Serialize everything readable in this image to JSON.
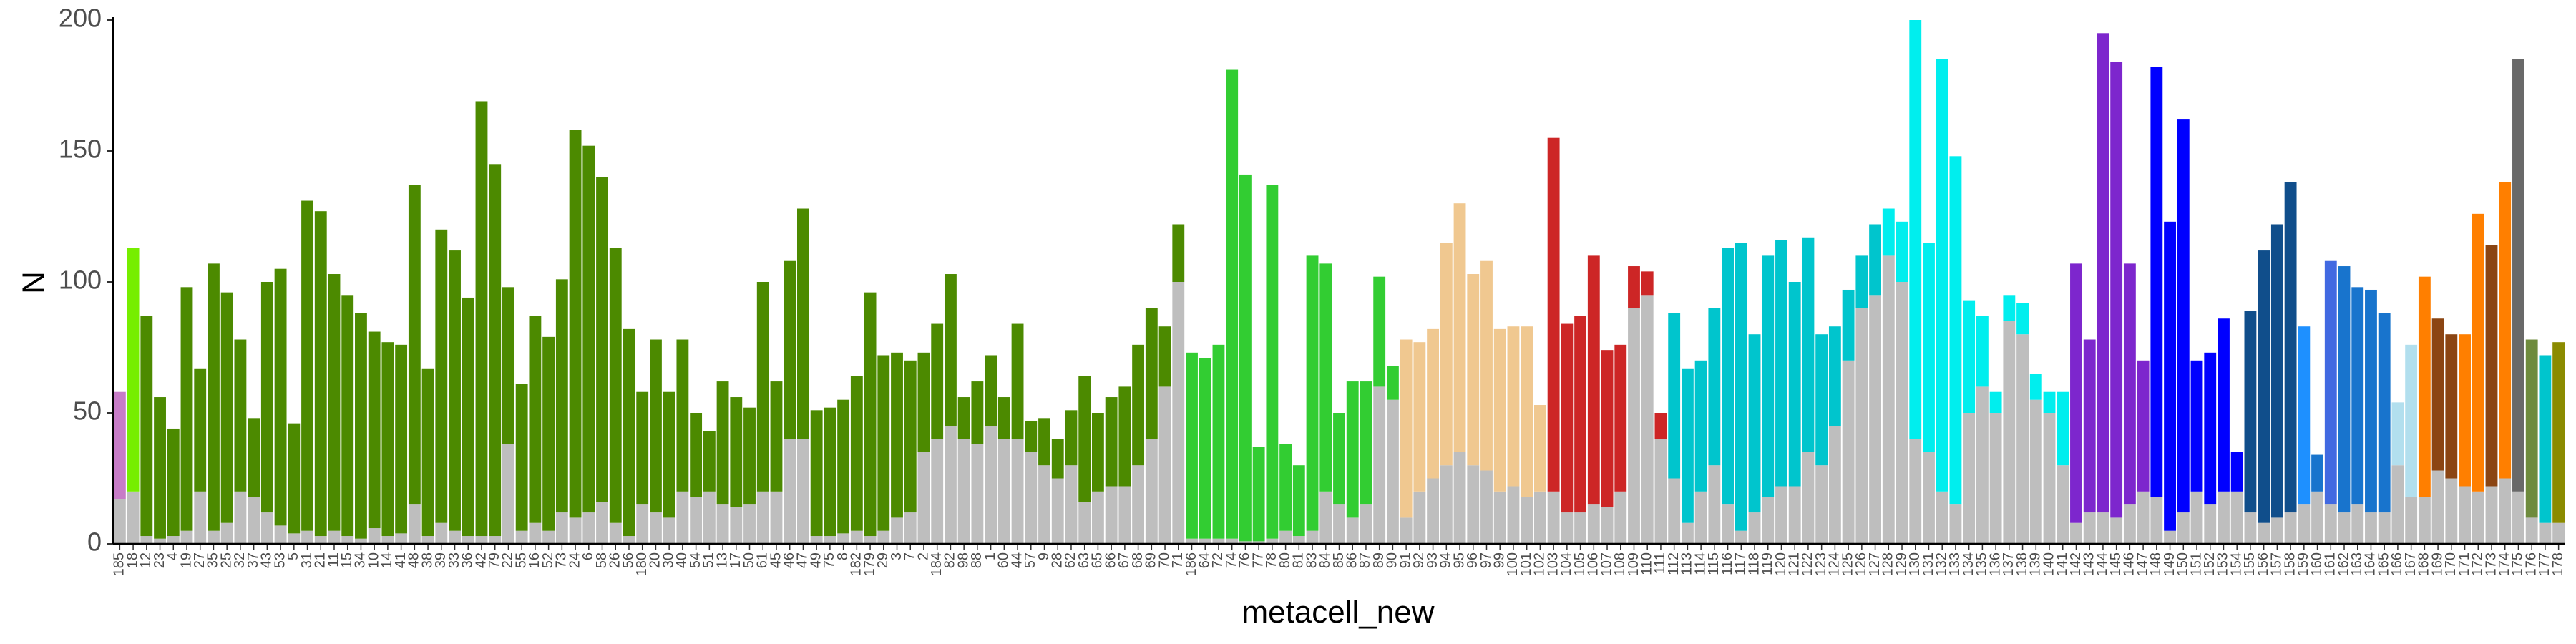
{
  "chart_data": {
    "type": "bar",
    "stacked": true,
    "xlabel": "metacell_new",
    "ylabel": "N",
    "ylim": [
      0,
      200
    ],
    "yticks": [
      0,
      50,
      100,
      150,
      200
    ],
    "categories": [
      "185",
      "18",
      "12",
      "23",
      "4",
      "19",
      "27",
      "35",
      "25",
      "32",
      "37",
      "43",
      "53",
      "5",
      "31",
      "21",
      "11",
      "15",
      "34",
      "10",
      "14",
      "41",
      "48",
      "38",
      "39",
      "33",
      "36",
      "42",
      "79",
      "22",
      "55",
      "16",
      "52",
      "73",
      "24",
      "6",
      "58",
      "26",
      "56",
      "180",
      "20",
      "30",
      "40",
      "54",
      "51",
      "13",
      "17",
      "50",
      "61",
      "45",
      "46",
      "47",
      "49",
      "75",
      "8",
      "182",
      "179",
      "29",
      "3",
      "7",
      "2",
      "184",
      "82",
      "98",
      "88",
      "1",
      "60",
      "44",
      "57",
      "9",
      "28",
      "62",
      "63",
      "65",
      "66",
      "67",
      "68",
      "69",
      "70",
      "71",
      "186",
      "64",
      "72",
      "74",
      "76",
      "77",
      "78",
      "80",
      "81",
      "83",
      "84",
      "85",
      "86",
      "87",
      "89",
      "90",
      "91",
      "92",
      "93",
      "94",
      "95",
      "96",
      "97",
      "99",
      "100",
      "101",
      "102",
      "103",
      "104",
      "105",
      "106",
      "107",
      "108",
      "109",
      "110",
      "111",
      "112",
      "113",
      "114",
      "115",
      "116",
      "117",
      "118",
      "119",
      "120",
      "121",
      "122",
      "123",
      "124",
      "125",
      "126",
      "127",
      "128",
      "129",
      "130",
      "131",
      "132",
      "133",
      "134",
      "135",
      "136",
      "137",
      "138",
      "139",
      "140",
      "141",
      "142",
      "143",
      "144",
      "145",
      "146",
      "147",
      "148",
      "149",
      "150",
      "151",
      "152",
      "153",
      "154",
      "155",
      "156",
      "157",
      "158",
      "159",
      "160",
      "161",
      "162",
      "163",
      "164",
      "165",
      "166",
      "167",
      "168",
      "169",
      "170",
      "171",
      "172",
      "173",
      "174",
      "175",
      "176",
      "177",
      "178"
    ],
    "series": [
      {
        "color": "#bebebe",
        "values": [
          17,
          20,
          3,
          2,
          3,
          5,
          20,
          5,
          8,
          20,
          18,
          12,
          7,
          4,
          5,
          3,
          5,
          3,
          2,
          6,
          3,
          4,
          15,
          3,
          8,
          5,
          3,
          3,
          3,
          38,
          5,
          8,
          5,
          12,
          10,
          12,
          16,
          8,
          3,
          15,
          12,
          10,
          20,
          18,
          20,
          15,
          14,
          15,
          20,
          20,
          40,
          40,
          3,
          3,
          4,
          5,
          3,
          5,
          10,
          12,
          35,
          40,
          45,
          40,
          38,
          45,
          40,
          40,
          35,
          30,
          25,
          30,
          16,
          20,
          22,
          22,
          30,
          40,
          60,
          100,
          2,
          2,
          2,
          2,
          1,
          1,
          2,
          5,
          3,
          5,
          20,
          15,
          10,
          15,
          60,
          55,
          10,
          20,
          25,
          30,
          35,
          30,
          28,
          20,
          22,
          18,
          20,
          20,
          12,
          12,
          15,
          14,
          20,
          90,
          95,
          40,
          25,
          8,
          20,
          30,
          15,
          5,
          12,
          18,
          22,
          22,
          35,
          30,
          45,
          70,
          90,
          95,
          110,
          100,
          40,
          35,
          20,
          15,
          50,
          60,
          50,
          85,
          80,
          55,
          50,
          30,
          8,
          12,
          12,
          10,
          15,
          20,
          18,
          5,
          12,
          20,
          15,
          20,
          20,
          12,
          8,
          10,
          12,
          15,
          20,
          15,
          12,
          15,
          12,
          12,
          30,
          18,
          18,
          28,
          25,
          22,
          20,
          22,
          25,
          20,
          10,
          8,
          8
        ]
      },
      {
        "colors": [
          "#c77cc7",
          "#76ee00",
          "#4c8a00",
          "#4c8a00",
          "#4c8a00",
          "#4c8a00",
          "#4c8a00",
          "#4c8a00",
          "#4c8a00",
          "#4c8a00",
          "#4c8a00",
          "#4c8a00",
          "#4c8a00",
          "#4c8a00",
          "#4c8a00",
          "#4c8a00",
          "#4c8a00",
          "#4c8a00",
          "#4c8a00",
          "#4c8a00",
          "#4c8a00",
          "#4c8a00",
          "#4c8a00",
          "#4c8a00",
          "#4c8a00",
          "#4c8a00",
          "#4c8a00",
          "#4c8a00",
          "#4c8a00",
          "#4c8a00",
          "#4c8a00",
          "#4c8a00",
          "#4c8a00",
          "#4c8a00",
          "#4c8a00",
          "#4c8a00",
          "#4c8a00",
          "#4c8a00",
          "#4c8a00",
          "#4c8a00",
          "#4c8a00",
          "#4c8a00",
          "#4c8a00",
          "#4c8a00",
          "#4c8a00",
          "#4c8a00",
          "#4c8a00",
          "#4c8a00",
          "#4c8a00",
          "#4c8a00",
          "#4c8a00",
          "#4c8a00",
          "#4c8a00",
          "#4c8a00",
          "#4c8a00",
          "#4c8a00",
          "#4c8a00",
          "#4c8a00",
          "#4c8a00",
          "#4c8a00",
          "#4c8a00",
          "#4c8a00",
          "#4c8a00",
          "#4c8a00",
          "#4c8a00",
          "#4c8a00",
          "#4c8a00",
          "#4c8a00",
          "#4c8a00",
          "#4c8a00",
          "#4c8a00",
          "#4c8a00",
          "#4c8a00",
          "#4c8a00",
          "#4c8a00",
          "#4c8a00",
          "#4c8a00",
          "#4c8a00",
          "#4c8a00",
          "#4c8a00",
          "#32cd32",
          "#32cd32",
          "#32cd32",
          "#32cd32",
          "#32cd32",
          "#32cd32",
          "#32cd32",
          "#32cd32",
          "#32cd32",
          "#32cd32",
          "#32cd32",
          "#32cd32",
          "#32cd32",
          "#32cd32",
          "#32cd32",
          "#32cd32",
          "#f0c890",
          "#f0c890",
          "#f0c890",
          "#f0c890",
          "#f0c890",
          "#f0c890",
          "#f0c890",
          "#f0c890",
          "#f0c890",
          "#f0c890",
          "#f0c890",
          "#cd2626",
          "#cd2626",
          "#cd2626",
          "#cd2626",
          "#cd2626",
          "#cd2626",
          "#cd2626",
          "#cd2626",
          "#cd2626",
          "#00c5cd",
          "#00c5cd",
          "#00c5cd",
          "#00c5cd",
          "#00c5cd",
          "#00c5cd",
          "#00c5cd",
          "#00c5cd",
          "#00c5cd",
          "#00c5cd",
          "#00c5cd",
          "#00c5cd",
          "#00c5cd",
          "#00c5cd",
          "#00c5cd",
          "#00c5cd",
          "#00eeee",
          "#00eeee",
          "#00eeee",
          "#00eeee",
          "#00eeee",
          "#00eeee",
          "#00eeee",
          "#00eeee",
          "#00eeee",
          "#00eeee",
          "#00eeee",
          "#00eeee",
          "#00eeee",
          "#00eeee",
          "#7d26cd",
          "#7d26cd",
          "#7d26cd",
          "#7d26cd",
          "#7d26cd",
          "#7d26cd",
          "#0000ff",
          "#0000ff",
          "#0000ff",
          "#0000ff",
          "#0000ff",
          "#0000ff",
          "#0000ff",
          "#104e8b",
          "#104e8b",
          "#104e8b",
          "#104e8b",
          "#1e90ff",
          "#1874cd",
          "#4169e1",
          "#1874cd",
          "#1874cd",
          "#1874cd",
          "#1874cd",
          "#b2dfee",
          "#b2dfee",
          "#ff7f00",
          "#8b4513",
          "#8b4513",
          "#ff7f00",
          "#ff7f00",
          "#8b4513",
          "#ff7f00",
          "#696969",
          "#6e8b3d",
          "#00c5cd",
          "#8b8b00"
        ],
        "values": [
          41,
          93,
          84,
          54,
          41,
          93,
          47,
          102,
          88,
          58,
          30,
          88,
          98,
          42,
          126,
          124,
          98,
          92,
          86,
          75,
          74,
          72,
          122,
          64,
          112,
          107,
          91,
          166,
          142,
          60,
          56,
          79,
          74,
          89,
          148,
          140,
          124,
          105,
          79,
          43,
          66,
          48,
          58,
          32,
          23,
          47,
          42,
          37,
          80,
          42,
          68,
          88,
          48,
          49,
          51,
          59,
          93,
          67,
          63,
          58,
          38,
          44,
          58,
          16,
          24,
          27,
          16,
          44,
          12,
          18,
          15,
          21,
          48,
          30,
          34,
          38,
          46,
          50,
          23,
          22,
          71,
          69,
          74,
          179,
          140,
          36,
          135,
          33,
          27,
          105,
          87,
          35,
          52,
          47,
          42,
          13,
          68,
          57,
          57,
          85,
          95,
          73,
          80,
          62,
          61,
          65,
          33,
          135,
          72,
          75,
          95,
          60,
          56,
          16,
          9,
          10,
          63,
          59,
          50,
          60,
          98,
          110,
          68,
          92,
          94,
          78,
          82,
          50,
          38,
          27,
          20,
          27,
          18,
          23,
          160,
          80,
          165,
          133,
          43,
          27,
          8,
          10,
          12,
          10,
          8,
          28,
          99,
          66,
          183,
          174,
          92,
          50,
          164,
          118,
          150,
          50,
          58,
          66,
          15,
          77,
          104,
          112,
          126,
          68,
          14,
          93,
          94,
          83,
          85,
          76,
          24,
          58,
          84,
          58,
          55,
          58,
          106,
          92,
          113,
          165,
          68,
          64,
          69
        ]
      }
    ]
  }
}
